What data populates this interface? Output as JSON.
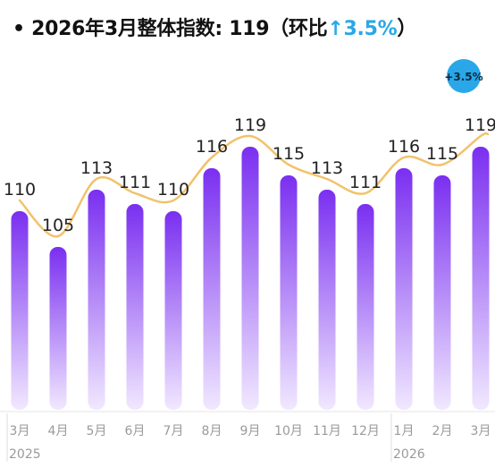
{
  "headline": {
    "bullet": "•",
    "text": "2026年3月整体指数: 119（环比",
    "arrow": "↑",
    "change": "3.5%",
    "close": "）"
  },
  "badge": {
    "label": "+3.5%",
    "color": "#2aa7e8"
  },
  "colors": {
    "bar_top": "#7a2ff0",
    "bar_bottom": "#f1e8ff",
    "line": "#f2c26b",
    "label": "#222222",
    "axis_text": "#9a9a9a"
  },
  "chart_data": {
    "type": "bar",
    "categories": [
      "3月",
      "4月",
      "5月",
      "6月",
      "7月",
      "8月",
      "9月",
      "10月",
      "11月",
      "12月",
      "1月",
      "2月",
      "3月"
    ],
    "values": [
      110,
      105,
      113,
      111,
      110,
      116,
      119,
      115,
      113,
      111,
      116,
      115,
      119
    ],
    "value_labels": [
      "110",
      "105",
      "113",
      "111",
      "110",
      "116",
      "119",
      "115",
      "113",
      "111",
      "116",
      "115",
      "119"
    ],
    "year_labels": [
      {
        "text": "2025",
        "start_index": 0
      },
      {
        "text": "2026",
        "start_index": 10
      }
    ],
    "overlay_line": true,
    "title": "",
    "xlabel": "",
    "ylabel": ""
  }
}
